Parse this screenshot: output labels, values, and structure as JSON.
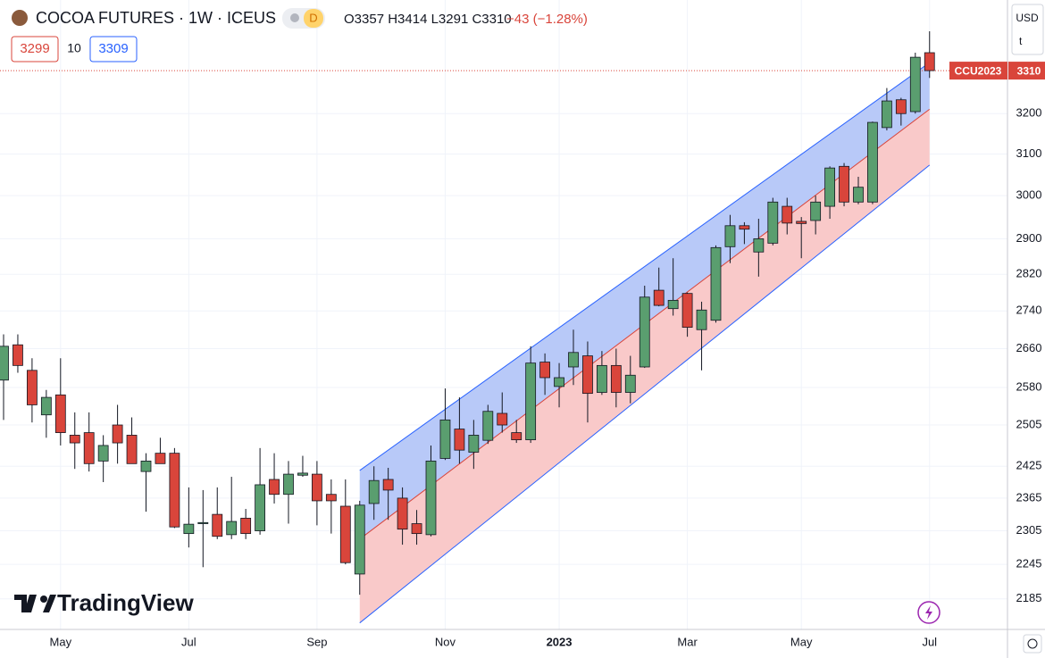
{
  "chart_data": {
    "type": "candlestick",
    "title": "COCOA FUTURES · 1W · ICEUS",
    "badge": "D",
    "ohlc_text": "O3357 H3414 L3291 C3310",
    "change_text": "−43 (−1.28%)",
    "inputs": [
      "3299",
      "10",
      "3309"
    ],
    "currency": "USD",
    "unit": "t",
    "watermark": "TradingView",
    "categories": [
      null,
      null,
      null,
      null,
      "May",
      null,
      null,
      null,
      null,
      null,
      null,
      null,
      null,
      "Jul",
      null,
      null,
      null,
      null,
      null,
      null,
      null,
      null,
      "Sep",
      null,
      null,
      null,
      null,
      null,
      null,
      null,
      null,
      "Nov",
      null,
      null,
      null,
      null,
      null,
      null,
      null,
      "2023",
      null,
      null,
      null,
      null,
      null,
      null,
      null,
      null,
      "Mar",
      null,
      null,
      null,
      null,
      null,
      null,
      null,
      "May",
      null,
      null,
      null,
      null,
      null,
      null,
      null,
      null,
      "Jul"
    ],
    "open": [
      2595,
      2668,
      2615,
      2525,
      2565,
      2485,
      2490,
      2435,
      2505,
      2485,
      2415,
      2450,
      2450,
      2300,
      2318,
      2335,
      2298,
      2328,
      2305,
      2400,
      2372,
      2408,
      2410,
      2372,
      2350,
      2228,
      2355,
      2400,
      2365,
      2318,
      2298,
      2440,
      2497,
      2452,
      2475,
      2528,
      2490,
      2476,
      2632,
      2582,
      2622,
      2645,
      2570,
      2625,
      2570,
      2622,
      2785,
      2745,
      2778,
      2700,
      2720,
      2882,
      2930,
      2870,
      2890,
      2975,
      2940,
      2942,
      2975,
      3070,
      2985,
      2985,
      3165,
      3235,
      3205,
      3357
    ],
    "high": [
      2690,
      2690,
      2640,
      2575,
      2640,
      2530,
      2530,
      2485,
      2545,
      2520,
      2450,
      2480,
      2460,
      2385,
      2380,
      2385,
      2405,
      2345,
      2460,
      2450,
      2435,
      2445,
      2435,
      2400,
      2400,
      2360,
      2425,
      2422,
      2385,
      2343,
      2465,
      2578,
      2560,
      2515,
      2545,
      2570,
      2515,
      2665,
      2650,
      2630,
      2700,
      2675,
      2655,
      2660,
      2645,
      2795,
      2835,
      2856,
      2780,
      2760,
      2885,
      2955,
      2938,
      2946,
      2995,
      2995,
      2950,
      3000,
      3070,
      3078,
      3045,
      3180,
      3265,
      3240,
      3357,
      3414
    ],
    "low": [
      2515,
      2610,
      2510,
      2480,
      2465,
      2420,
      2415,
      2395,
      2430,
      2430,
      2340,
      2430,
      2310,
      2275,
      2240,
      2290,
      2290,
      2290,
      2298,
      2355,
      2318,
      2405,
      2315,
      2300,
      2245,
      2192,
      2325,
      2325,
      2280,
      2280,
      2295,
      2437,
      2430,
      2420,
      2468,
      2490,
      2470,
      2470,
      2565,
      2540,
      2585,
      2510,
      2565,
      2540,
      2548,
      2620,
      2750,
      2730,
      2685,
      2615,
      2715,
      2845,
      2888,
      2815,
      2885,
      2910,
      2856,
      2910,
      2946,
      2975,
      2980,
      2980,
      3158,
      3170,
      3200,
      3291
    ],
    "close": [
      2665,
      2625,
      2545,
      2560,
      2490,
      2470,
      2430,
      2465,
      2470,
      2430,
      2435,
      2430,
      2312,
      2317,
      2320,
      2295,
      2322,
      2300,
      2390,
      2372,
      2410,
      2412,
      2360,
      2360,
      2248,
      2352,
      2398,
      2380,
      2308,
      2300,
      2435,
      2515,
      2456,
      2485,
      2532,
      2505,
      2476,
      2630,
      2600,
      2600,
      2652,
      2568,
      2625,
      2570,
      2605,
      2770,
      2752,
      2763,
      2705,
      2742,
      2880,
      2930,
      2922,
      2900,
      2985,
      2936,
      2935,
      2985,
      3066,
      2985,
      3020,
      3178,
      3232,
      3200,
      3345,
      3310
    ],
    "up_color": "#5a9e6f",
    "down_color": "#d9453b",
    "channel": {
      "start": 25,
      "end": 65,
      "upper": [
        2417,
        3331
      ],
      "middle": [
        2290,
        3211
      ],
      "lower": [
        2144,
        3073
      ],
      "upper_fill": "#b8c9f8",
      "lower_fill": "#f9c9c9"
    },
    "last_price": 3310,
    "last_label": "CCU2023",
    "log_scale": true,
    "ylim": [
      2133,
      3499
    ],
    "yticks": [
      3200,
      3100,
      3000,
      2900,
      2820,
      2740,
      2660,
      2580,
      2505,
      2425,
      2365,
      2305,
      2245,
      2185
    ],
    "grid": true
  }
}
